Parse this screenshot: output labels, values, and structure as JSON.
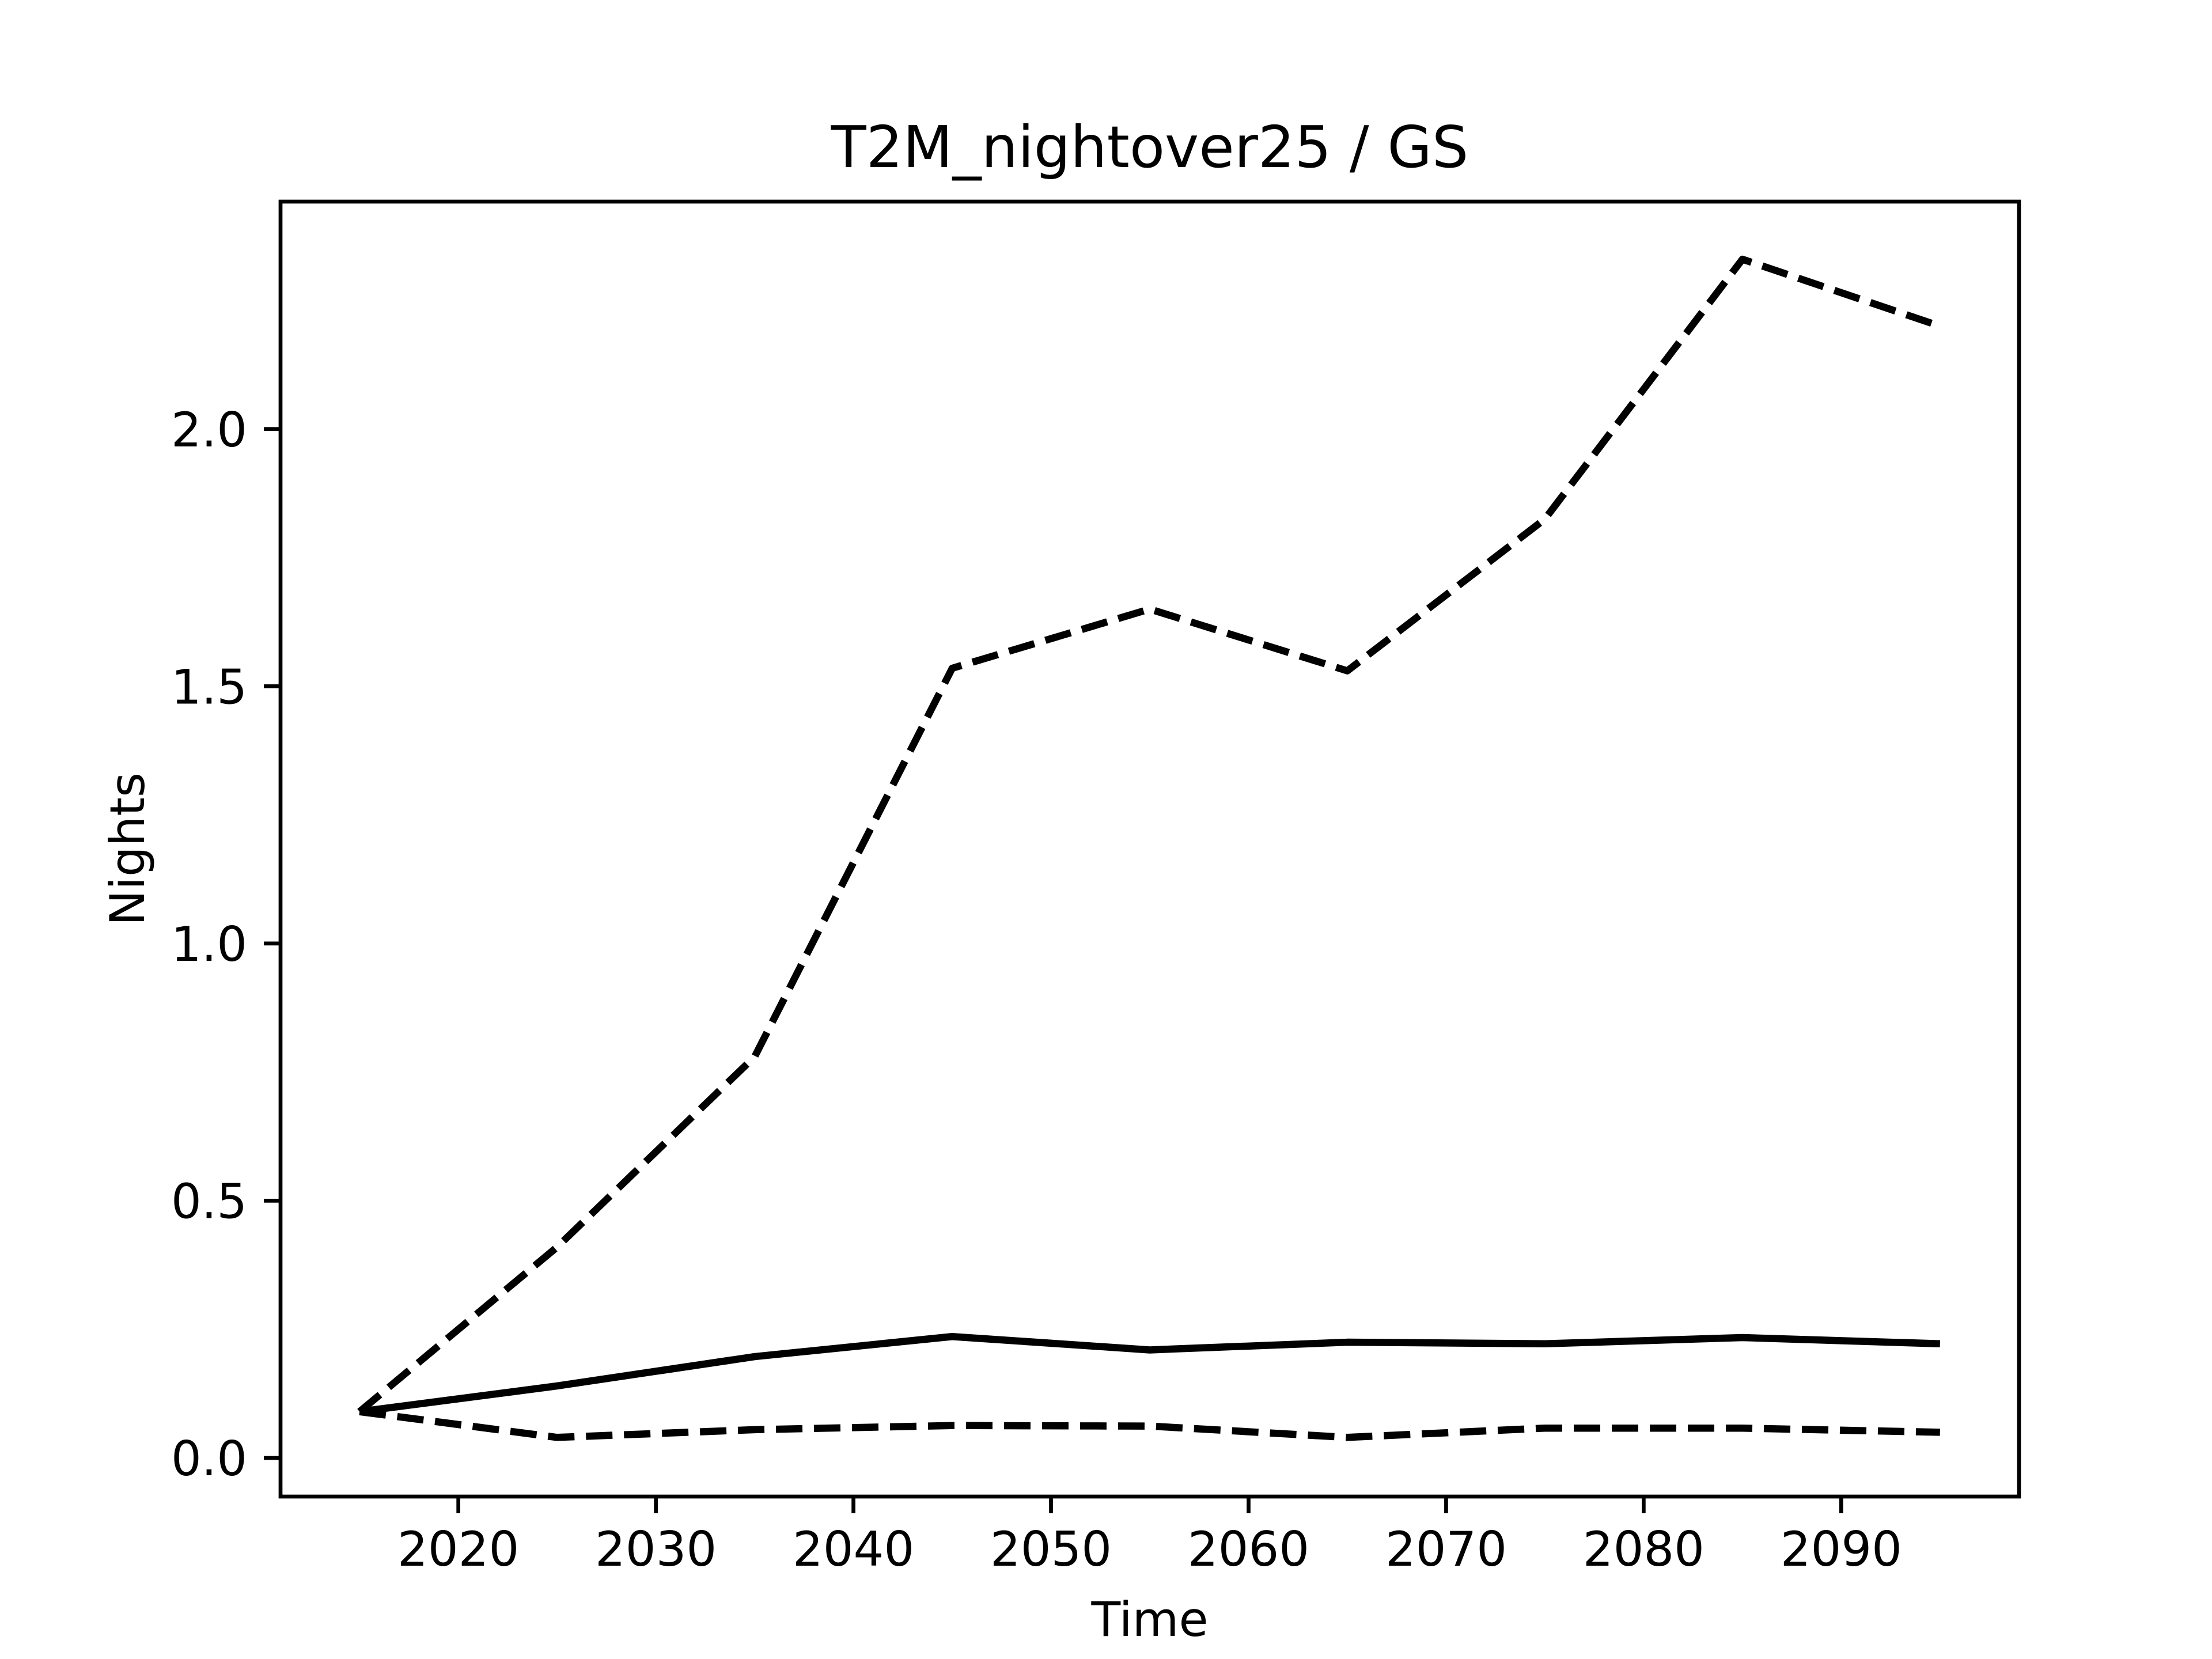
{
  "chart_data": {
    "type": "line",
    "title": "T2M_nightover25 / GS",
    "xlabel": "Time",
    "ylabel": "Nights",
    "x": [
      2015,
      2025,
      2035,
      2045,
      2055,
      2065,
      2075,
      2085,
      2095
    ],
    "series": [
      {
        "color": "#000000",
        "linestyle": "dashed",
        "values": [
          0.09,
          0.41,
          0.78,
          1.535,
          1.65,
          1.53,
          1.825,
          2.33,
          2.2
        ]
      },
      {
        "color": "#000000",
        "linestyle": "solid",
        "values": [
          0.09,
          0.14,
          0.197,
          0.236,
          0.21,
          0.225,
          0.222,
          0.234,
          0.222
        ]
      },
      {
        "color": "#000000",
        "linestyle": "dashed",
        "values": [
          0.09,
          0.04,
          0.055,
          0.063,
          0.062,
          0.04,
          0.058,
          0.058,
          0.05
        ]
      }
    ],
    "xlim": [
      2011,
      2099
    ],
    "xticks": [
      2020,
      2030,
      2040,
      2050,
      2060,
      2070,
      2080,
      2090
    ],
    "ylim": [
      -0.075,
      2.442
    ],
    "yticks": [
      {
        "value": 0,
        "label": "0.0"
      },
      {
        "value": 0.5,
        "label": "0.5"
      },
      {
        "value": 1,
        "label": "1.0"
      },
      {
        "value": 1.5,
        "label": "1.5"
      },
      {
        "value": 2,
        "label": "2.0"
      }
    ],
    "grid": false
  }
}
